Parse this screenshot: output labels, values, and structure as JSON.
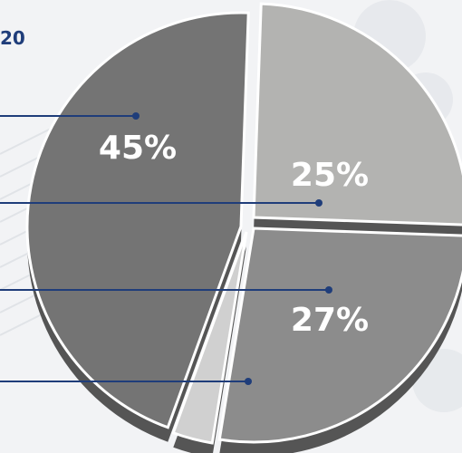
{
  "header": {
    "year_fragment": "20"
  },
  "colors": {
    "leader": "#1f3d7a",
    "slice_light": "#b3b3b1",
    "slice_mid": "#8c8c8c",
    "slice_dark": "#747474",
    "slice_sliver": "#d0d0d0",
    "side": "#555555"
  },
  "chart_data": {
    "type": "pie",
    "title": "",
    "slices": [
      {
        "label": "25%",
        "value": 25
      },
      {
        "label": "27%",
        "value": 27
      },
      {
        "label": "45%",
        "value": 45
      },
      {
        "label": "",
        "value": 3
      }
    ],
    "legend": "none",
    "leader_lines": 4
  }
}
